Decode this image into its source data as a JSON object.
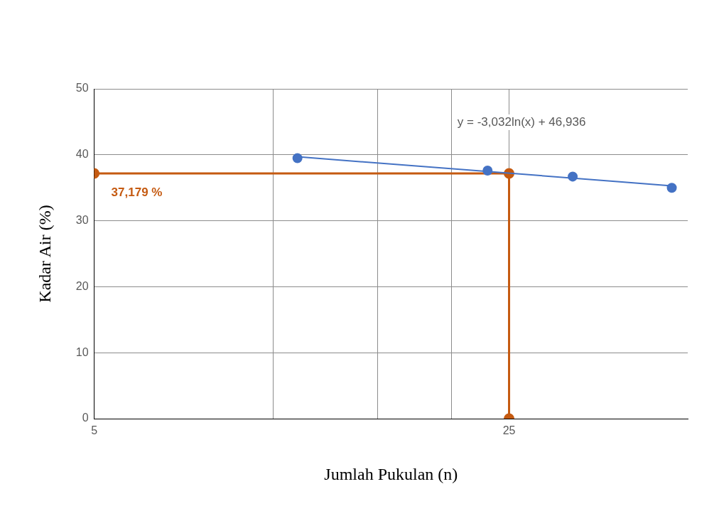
{
  "chart_data": {
    "type": "scatter",
    "xlabel": "Jumlah Pukulan (n)",
    "ylabel": "Kadar Air (%)",
    "log": "x",
    "grid": true,
    "xlim": [
      5,
      50
    ],
    "xticks": [
      5,
      {
        "value": 10,
        "label": null
      },
      {
        "value": 15,
        "label": null
      },
      {
        "value": 20,
        "label": null
      },
      25
    ],
    "ylim": [
      0,
      50
    ],
    "yticks": [
      0,
      10,
      20,
      30,
      40,
      50
    ],
    "series": [
      {
        "color": "#4472c4",
        "marker": "circle",
        "x": [
          11,
          23,
          32,
          47
        ],
        "values": [
          39.5,
          37.6,
          36.7,
          35.0
        ]
      },
      {
        "type": "line",
        "color": "#4472c4",
        "marker": "none",
        "x": [
          11,
          47
        ],
        "values": [
          39.7,
          35.3
        ]
      },
      {
        "type": "line",
        "color": "#c55a11",
        "marker": "circle",
        "x": [
          5,
          25,
          25
        ],
        "values": [
          37.179,
          37.179,
          0
        ]
      }
    ],
    "annotations": [
      "y = -3,032ln(x) + 46,936",
      {
        "text": "37,179 %",
        "x": 5,
        "y": 37.179
      }
    ]
  }
}
